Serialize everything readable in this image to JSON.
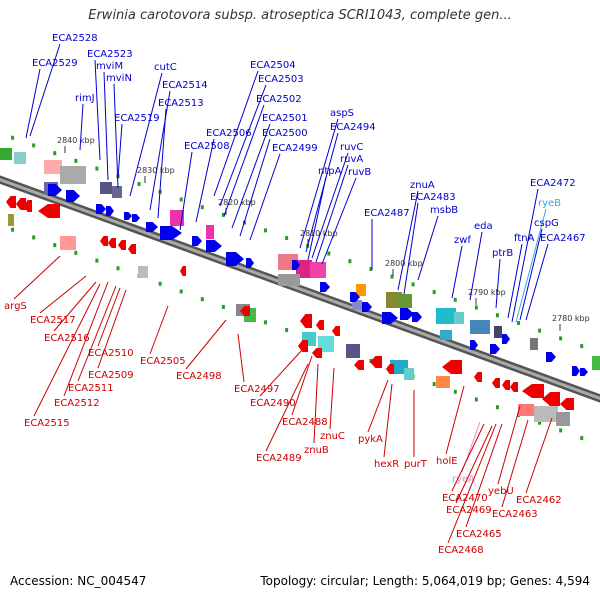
{
  "title": "Erwinia carotovora subsp. atroseptica SCRI1043, complete gen...",
  "footer": {
    "accession": "Accession: NC_004547",
    "topology": "Topology: circular; Length: 5,064,019 bp; Genes: 4,594"
  },
  "colors": {
    "forward_label": "#0000cc",
    "reverse_label": "#cc0000",
    "rna_forward": "#33aaee",
    "rna_reverse": "#ee88cc",
    "backbone": "#888888"
  },
  "scale_labels": [
    "2840 kbp",
    "2830 kbp",
    "2820 kbp",
    "2810 kbp",
    "2800 kbp",
    "2790 kbp",
    "2780 kbp"
  ],
  "forward_genes": [
    "ECA2528",
    "ECA2523",
    "ECA2529",
    "mviM",
    "mviN",
    "rimJ",
    "cutC",
    "ECA2514",
    "ECA2513",
    "ECA2519",
    "ECA2504",
    "ECA2503",
    "ECA2502",
    "ECA2501",
    "ECA2506",
    "ECA2500",
    "ECA2508",
    "ECA2499",
    "aspS",
    "ECA2494",
    "ruvC",
    "ruvA",
    "ntpA",
    "ruvB",
    "znuA",
    "ECA2483",
    "ECA2487",
    "msbB",
    "eda",
    "zwf",
    "ptrB",
    "ECA2472",
    "ryeB",
    "cspG",
    "ftnA",
    "ECA2467"
  ],
  "reverse_genes": [
    "argS",
    "ECA2517",
    "ECA2516",
    "ECA2510",
    "ECA2509",
    "ECA2511",
    "ECA2512",
    "ECA2515",
    "ECA2505",
    "ECA2498",
    "ECA2497",
    "ECA2490",
    "ECA2488",
    "ECA2489",
    "znuC",
    "znuB",
    "pykA",
    "hexR",
    "purT",
    "holE",
    "ryeA",
    "ECA2470",
    "ECA2469",
    "yebU",
    "ECA2462",
    "ECA2463",
    "ECA2465",
    "ECA2468"
  ]
}
